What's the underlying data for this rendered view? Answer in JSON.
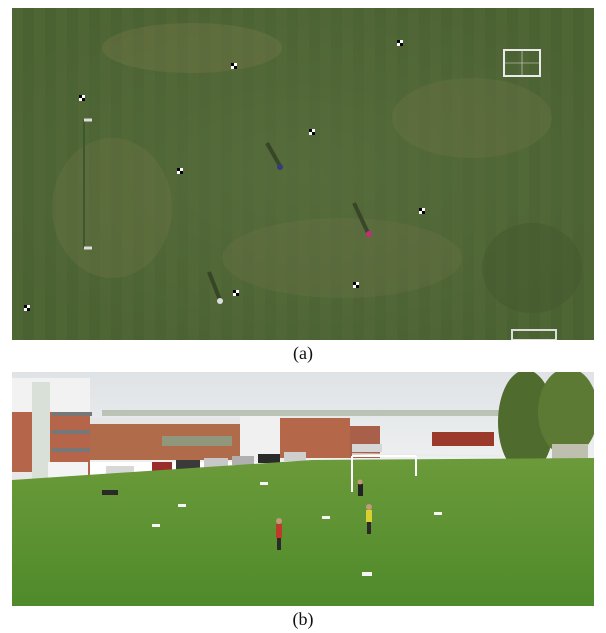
{
  "figure": {
    "panels": [
      {
        "id": "a",
        "label": "(a)",
        "content": "aerial-field"
      },
      {
        "id": "b",
        "label": "(b)",
        "content": "ground-field"
      }
    ]
  }
}
